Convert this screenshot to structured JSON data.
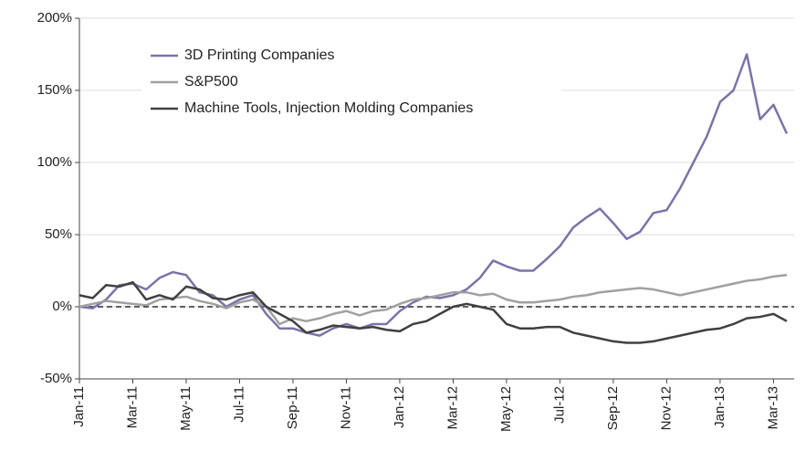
{
  "chart_data": {
    "type": "line",
    "categories": [
      "Jan-11",
      null,
      null,
      null,
      "Mar-11",
      null,
      null,
      null,
      "May-11",
      null,
      null,
      null,
      "Jul-11",
      null,
      null,
      null,
      "Sep-11",
      null,
      null,
      null,
      "Nov-11",
      null,
      null,
      null,
      "Jan-12",
      null,
      null,
      null,
      "Mar-12",
      null,
      null,
      null,
      "May-12",
      null,
      null,
      null,
      "Jul-12",
      null,
      null,
      null,
      "Sep-12",
      null,
      null,
      null,
      "Nov-12",
      null,
      null,
      null,
      "Jan-13",
      null,
      null,
      null,
      "Mar-13",
      null
    ],
    "series": [
      {
        "name": "3D Printing Companies",
        "color": "#7b73a8",
        "values": [
          0,
          -1,
          5,
          15,
          16,
          12,
          20,
          24,
          22,
          10,
          8,
          0,
          5,
          8,
          -5,
          -15,
          -15,
          -18,
          -20,
          -15,
          -12,
          -15,
          -12,
          -12,
          -3,
          3,
          7,
          6,
          8,
          12,
          20,
          32,
          28,
          25,
          25,
          33,
          42,
          55,
          62,
          68,
          58,
          47,
          52,
          65,
          67,
          82,
          100,
          118,
          142,
          150,
          175,
          130,
          140,
          120
        ]
      },
      {
        "name": "S&P500",
        "color": "#a0a0a0",
        "values": [
          0,
          2,
          4,
          3,
          2,
          1,
          5,
          6,
          7,
          4,
          2,
          -1,
          3,
          5,
          0,
          -12,
          -8,
          -10,
          -8,
          -5,
          -3,
          -6,
          -3,
          -2,
          2,
          5,
          6,
          8,
          10,
          10,
          8,
          9,
          5,
          3,
          3,
          4,
          5,
          7,
          8,
          10,
          11,
          12,
          13,
          12,
          10,
          8,
          10,
          12,
          14,
          16,
          18,
          19,
          21,
          22
        ]
      },
      {
        "name": "Machine Tools, Injection Molding Companies",
        "color": "#404040",
        "values": [
          8,
          6,
          15,
          14,
          17,
          5,
          8,
          5,
          14,
          12,
          6,
          5,
          8,
          10,
          0,
          -5,
          -10,
          -18,
          -16,
          -13,
          -14,
          -15,
          -14,
          -16,
          -17,
          -12,
          -10,
          -5,
          0,
          2,
          0,
          -2,
          -12,
          -15,
          -15,
          -14,
          -14,
          -18,
          -20,
          -22,
          -24,
          -25,
          -25,
          -24,
          -22,
          -20,
          -18,
          -16,
          -15,
          -12,
          -8,
          -7,
          -5,
          -10
        ]
      }
    ],
    "ylim": [
      -50,
      200
    ],
    "yticks": [
      {
        "value": -50,
        "label": "-50%"
      },
      {
        "value": 0,
        "label": "0%"
      },
      {
        "value": 50,
        "label": "50%"
      },
      {
        "value": 100,
        "label": "100%"
      },
      {
        "value": 150,
        "label": "150%"
      },
      {
        "value": 200,
        "label": "200%"
      }
    ],
    "grid": true,
    "hline": 0,
    "legend": "upper left"
  }
}
